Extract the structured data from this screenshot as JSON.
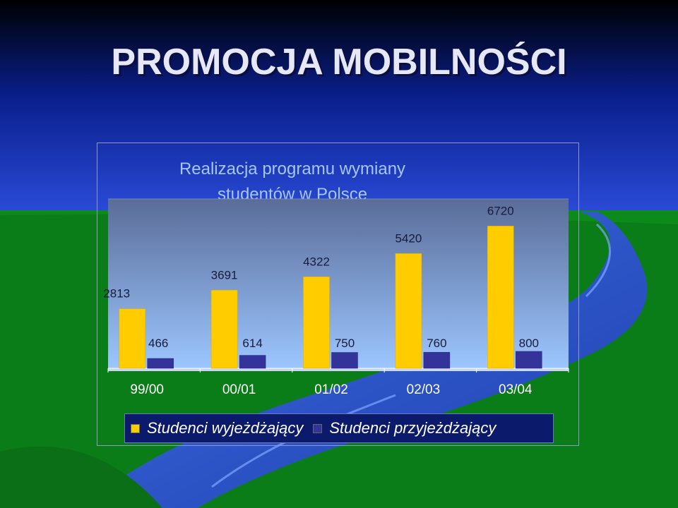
{
  "slide": {
    "title": "PROMOCJA MOBILNOŚCI"
  },
  "colors": {
    "outgoing": "#ffcc00",
    "incoming": "#333399",
    "plot_top": "#5a6c98",
    "plot_bottom": "#9cc6ff",
    "chart_title": "#a7c6ff",
    "legend_bg": "#0c1a6c"
  },
  "chart_data": {
    "type": "bar",
    "title": "Realizacja programu wymiany studentów w Polsce",
    "title_lines": [
      "Realizacja programu wymiany",
      "studentów w Polsce"
    ],
    "categories": [
      "99/00",
      "00/01",
      "01/02",
      "02/03",
      "03/04"
    ],
    "series": [
      {
        "name": "Studenci wyjeżdżający",
        "values": [
          2813,
          3691,
          4322,
          5420,
          6720
        ]
      },
      {
        "name": "Studenci przyjeżdżający",
        "values": [
          466,
          614,
          750,
          760,
          800
        ]
      }
    ],
    "value_labels": [
      [
        "2813",
        "3691",
        "4322",
        "5420",
        "6720"
      ],
      [
        "466",
        "614",
        "750",
        "760",
        "800"
      ]
    ],
    "ylim": [
      0,
      8000
    ],
    "gridlines": [
      8000
    ],
    "legend_position": "bottom",
    "xlabel": "",
    "ylabel": ""
  }
}
